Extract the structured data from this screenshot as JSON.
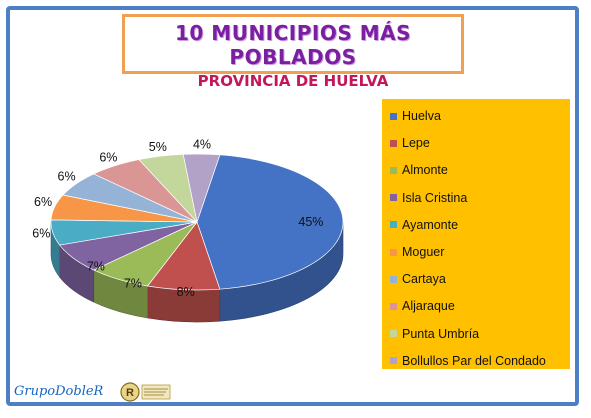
{
  "title": "10 MUNICIPIOS MÁS POBLADOS",
  "subtitle": "PROVINCIA DE HUELVA",
  "logo_text": "GrupoDobleR",
  "chart_data": {
    "type": "pie",
    "title": "10 MUNICIPIOS MÁS POBLADOS",
    "subtitle": "PROVINCIA DE HUELVA",
    "legend_position": "right",
    "categories": [
      "Huelva",
      "Lepe",
      "Almonte",
      "Isla Cristina",
      "Ayamonte",
      "Moguer",
      "Cartaya",
      "Aljaraque",
      "Punta Umbría",
      "Bollullos Par del Condado"
    ],
    "values": [
      45,
      8,
      7,
      7,
      6,
      6,
      6,
      6,
      5,
      4
    ],
    "labels": [
      "45%",
      "8%",
      "7%",
      "7%",
      "6%",
      "6%",
      "6%",
      "6%",
      "5%",
      "4%"
    ],
    "colors": [
      "#4472c4",
      "#c0504d",
      "#9bbb59",
      "#8064a2",
      "#4bacc6",
      "#f79646",
      "#95b3d7",
      "#d99694",
      "#c3d69b",
      "#b2a2c7"
    ]
  }
}
